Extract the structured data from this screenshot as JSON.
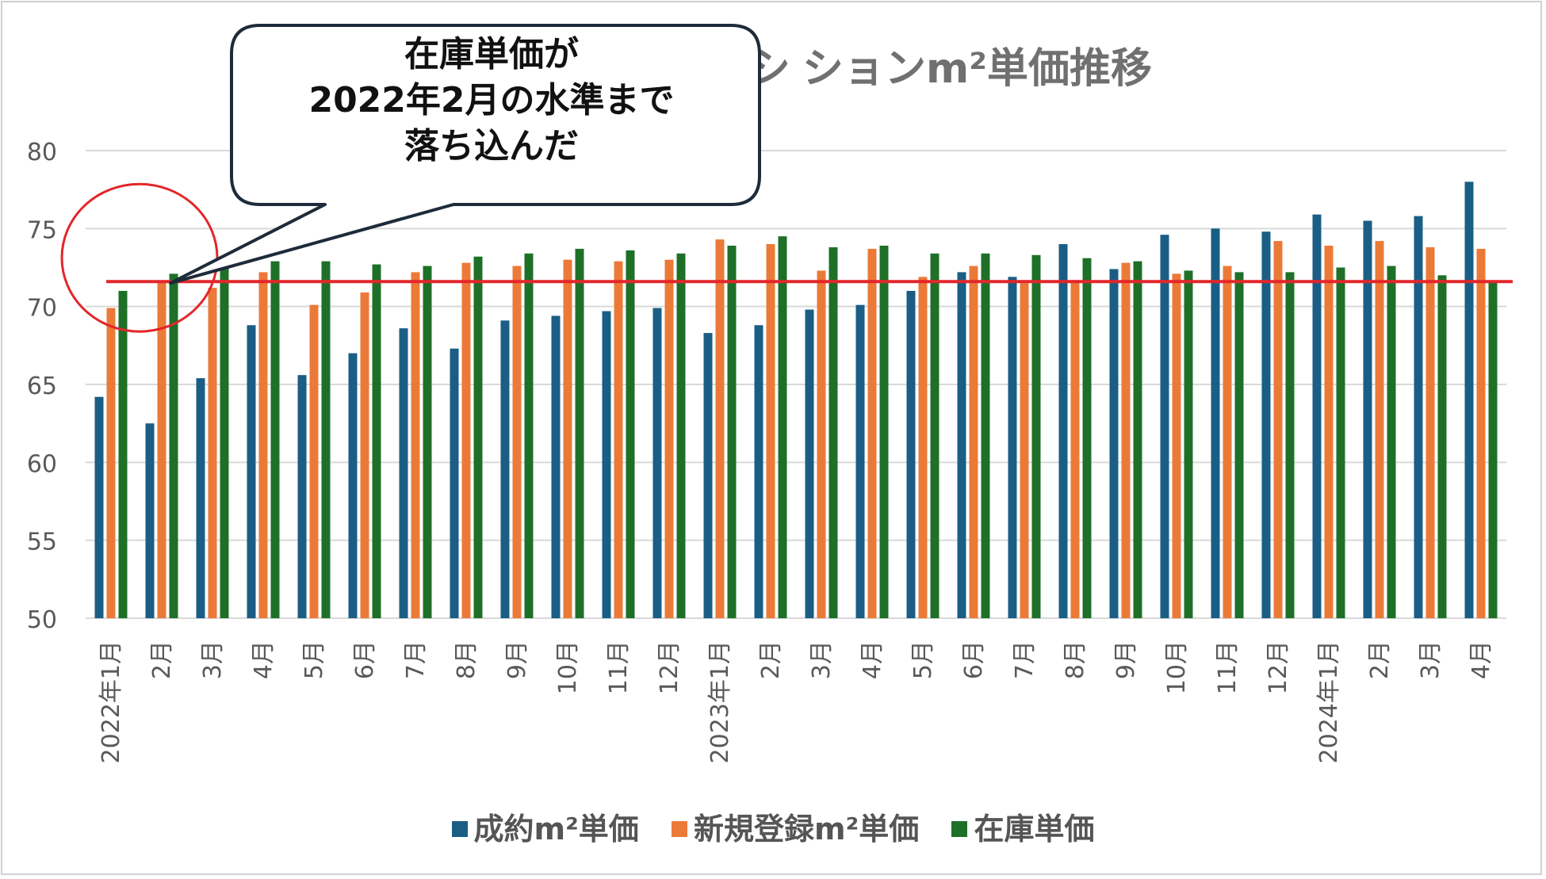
{
  "chart_data": {
    "type": "bar",
    "title": "マンションm²単価推移",
    "title_visible_part": "ションm²単価推移",
    "title_partial_glyph": "シ",
    "ylim": [
      50,
      80
    ],
    "yticks": [
      50,
      55,
      60,
      65,
      70,
      75,
      80
    ],
    "categories": [
      "2022年1月",
      "2月",
      "3月",
      "4月",
      "5月",
      "6月",
      "7月",
      "8月",
      "9月",
      "10月",
      "11月",
      "12月",
      "2023年1月",
      "2月",
      "3月",
      "4月",
      "5月",
      "6月",
      "7月",
      "8月",
      "9月",
      "10月",
      "11月",
      "12月",
      "2024年1月",
      "2月",
      "3月",
      "4月"
    ],
    "series": [
      {
        "name": "成約m²単価",
        "color": "#1a5e85",
        "values": [
          64.2,
          62.5,
          65.4,
          68.8,
          65.6,
          67.0,
          68.6,
          67.3,
          69.1,
          69.4,
          69.7,
          69.9,
          68.3,
          68.8,
          69.8,
          70.1,
          71.0,
          72.2,
          71.9,
          74.0,
          72.4,
          74.6,
          75.0,
          74.8,
          75.9,
          75.5,
          75.8,
          78.0
        ]
      },
      {
        "name": "新規登録m²単価",
        "color": "#eb7a38",
        "values": [
          69.9,
          71.6,
          71.2,
          72.2,
          70.1,
          70.9,
          72.2,
          72.8,
          72.6,
          73.0,
          72.9,
          73.0,
          74.3,
          74.0,
          72.3,
          73.7,
          71.9,
          72.6,
          71.5,
          71.7,
          72.8,
          72.1,
          72.6,
          74.2,
          73.9,
          74.2,
          73.8,
          73.7
        ]
      },
      {
        "name": "在庫単価",
        "color": "#1e7028",
        "values": [
          71.0,
          72.1,
          72.5,
          72.9,
          72.9,
          72.7,
          72.6,
          73.2,
          73.4,
          73.7,
          73.6,
          73.4,
          73.9,
          74.5,
          73.8,
          73.9,
          73.4,
          73.4,
          73.3,
          73.1,
          72.9,
          72.3,
          72.2,
          72.2,
          72.5,
          72.6,
          72.0,
          71.6
        ]
      }
    ],
    "reference_line": {
      "value": 71.6,
      "color": "#e3262a"
    },
    "highlight": {
      "category_index": 1
    },
    "annotation": {
      "lines": [
        "在庫単価が",
        "2022年2月の水準まで",
        "落ち込んだ"
      ]
    },
    "legend_position": "bottom"
  }
}
